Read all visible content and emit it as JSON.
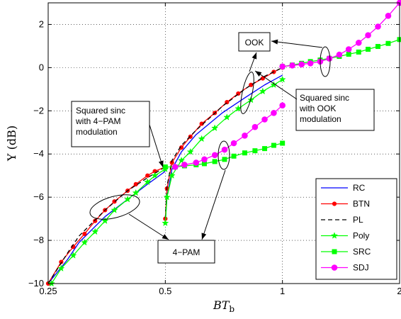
{
  "chart_data": {
    "type": "line",
    "xlabel": "BT_b",
    "ylabel": "Υ (dB)",
    "xscale": "log",
    "xlim": [
      0.25,
      2
    ],
    "ylim": [
      -10,
      3
    ],
    "xticks": [
      0.25,
      0.5,
      1,
      2
    ],
    "xtick_labels": [
      "0.25",
      "0.5",
      "1",
      "2"
    ],
    "yticks": [
      -10,
      -8,
      -6,
      -4,
      -2,
      0,
      2
    ],
    "ytick_labels": [
      "−10",
      "−8",
      "−6",
      "−4",
      "−2",
      "0",
      "2"
    ],
    "grid": "dotted",
    "legend_position": "bottom-right",
    "series": [
      {
        "name": "RC",
        "color": "#0000ff",
        "marker": "none",
        "dash": "solid",
        "segments": [
          {
            "x": [
              0.25,
              0.28,
              0.3,
              0.35,
              0.4,
              0.45,
              0.5
            ],
            "y": [
              -10,
              -8.9,
              -8.1,
              -6.9,
              -6.1,
              -5.4,
              -4.8
            ]
          },
          {
            "x": [
              0.5,
              0.505,
              0.52,
              0.55,
              0.6,
              0.7,
              0.8,
              0.9,
              1.0
            ],
            "y": [
              -7.2,
              -6.0,
              -4.7,
              -3.9,
              -3.1,
              -2.1,
              -1.4,
              -0.8,
              -0.35
            ]
          }
        ]
      },
      {
        "name": "BTN",
        "color": "#ff0000",
        "marker": "dot",
        "dash": "solid",
        "segments": [
          {
            "x": [
              0.25,
              0.27,
              0.29,
              0.31,
              0.33,
              0.35,
              0.37,
              0.4,
              0.42,
              0.45,
              0.47,
              0.5
            ],
            "y": [
              -10,
              -9.0,
              -8.3,
              -7.7,
              -7.1,
              -6.6,
              -6.2,
              -5.7,
              -5.4,
              -5.0,
              -4.8,
              -4.6
            ]
          },
          {
            "x": [
              0.5,
              0.505,
              0.52,
              0.55,
              0.58,
              0.62,
              0.67,
              0.72,
              0.77,
              0.83,
              0.89,
              0.95,
              1.0
            ],
            "y": [
              -7.0,
              -5.6,
              -4.4,
              -3.7,
              -3.2,
              -2.6,
              -2.1,
              -1.6,
              -1.2,
              -0.8,
              -0.5,
              -0.2,
              0.0
            ]
          }
        ]
      },
      {
        "name": "PL",
        "color": "#000000",
        "marker": "none",
        "dash": "dashed",
        "segments": [
          {
            "x": [
              0.25,
              0.28,
              0.3,
              0.35,
              0.4,
              0.45,
              0.5
            ],
            "y": [
              -10,
              -8.6,
              -7.8,
              -6.6,
              -5.7,
              -5.1,
              -4.6
            ]
          },
          {
            "x": [
              0.5,
              0.505,
              0.52,
              0.55,
              0.6,
              0.7,
              0.8,
              0.9,
              1.0
            ],
            "y": [
              -7.0,
              -5.5,
              -4.3,
              -3.6,
              -2.9,
              -1.8,
              -1.0,
              -0.4,
              0.0
            ]
          }
        ]
      },
      {
        "name": "Poly",
        "color": "#00ff00",
        "marker": "star",
        "dash": "solid",
        "segments": [
          {
            "x": [
              0.255,
              0.27,
              0.29,
              0.31,
              0.33,
              0.35,
              0.37,
              0.4,
              0.42,
              0.45,
              0.47,
              0.5
            ],
            "y": [
              -10,
              -9.3,
              -8.7,
              -8.1,
              -7.6,
              -7.1,
              -6.6,
              -6.1,
              -5.8,
              -5.3,
              -5.0,
              -4.7
            ]
          },
          {
            "x": [
              0.5,
              0.505,
              0.52,
              0.55,
              0.58,
              0.62,
              0.67,
              0.72,
              0.77,
              0.83,
              0.89,
              0.95,
              1.0
            ],
            "y": [
              -7.2,
              -6.0,
              -5.0,
              -4.3,
              -3.9,
              -3.3,
              -2.8,
              -2.3,
              -1.9,
              -1.5,
              -1.1,
              -0.8,
              -0.55
            ]
          }
        ]
      },
      {
        "name": "SRC",
        "color": "#00ff00",
        "marker": "square",
        "dash": "solid",
        "segments": [
          {
            "x": [
              0.5,
              0.53,
              0.56,
              0.6,
              0.63,
              0.67,
              0.71,
              0.75,
              0.8,
              0.85,
              0.9,
              0.95,
              1.0
            ],
            "y": [
              -4.6,
              -4.6,
              -4.55,
              -4.5,
              -4.45,
              -4.35,
              -4.25,
              -4.1,
              -3.95,
              -3.85,
              -3.75,
              -3.6,
              -3.5
            ]
          },
          {
            "x": [
              1.0,
              1.06,
              1.12,
              1.18,
              1.25,
              1.32,
              1.4,
              1.48,
              1.57,
              1.66,
              1.76,
              1.87,
              2.0
            ],
            "y": [
              0.05,
              0.12,
              0.2,
              0.28,
              0.35,
              0.43,
              0.52,
              0.62,
              0.72,
              0.85,
              0.98,
              1.12,
              1.3
            ]
          }
        ]
      },
      {
        "name": "SDJ",
        "color": "#ff00ff",
        "marker": "circle",
        "dash": "solid",
        "segments": [
          {
            "x": [
              0.53,
              0.56,
              0.6,
              0.63,
              0.67,
              0.71,
              0.75,
              0.8,
              0.85,
              0.9,
              0.95,
              1.0
            ],
            "y": [
              -4.6,
              -4.5,
              -4.4,
              -4.25,
              -4.05,
              -3.8,
              -3.5,
              -3.15,
              -2.75,
              -2.4,
              -2.1,
              -1.75
            ]
          },
          {
            "x": [
              1.0,
              1.06,
              1.12,
              1.18,
              1.25,
              1.32,
              1.4,
              1.48,
              1.57,
              1.66,
              1.76,
              1.87,
              2.0
            ],
            "y": [
              0.05,
              0.1,
              0.15,
              0.2,
              0.28,
              0.42,
              0.6,
              0.85,
              1.15,
              1.5,
              1.9,
              2.4,
              3.0
            ]
          }
        ]
      }
    ],
    "legend": [
      "RC",
      "BTN",
      "PL",
      "Poly",
      "SRC",
      "SDJ"
    ],
    "annotations": [
      {
        "id": "ook",
        "lines": [
          "OOK"
        ]
      },
      {
        "id": "sinc-ook",
        "lines": [
          "Squared sinc",
          "with OOK",
          "modulation"
        ]
      },
      {
        "id": "sinc-4pam",
        "lines": [
          "Squared sinc",
          "with 4−PAM",
          "modulation"
        ]
      },
      {
        "id": "pam4",
        "lines": [
          "4−PAM"
        ]
      }
    ]
  }
}
